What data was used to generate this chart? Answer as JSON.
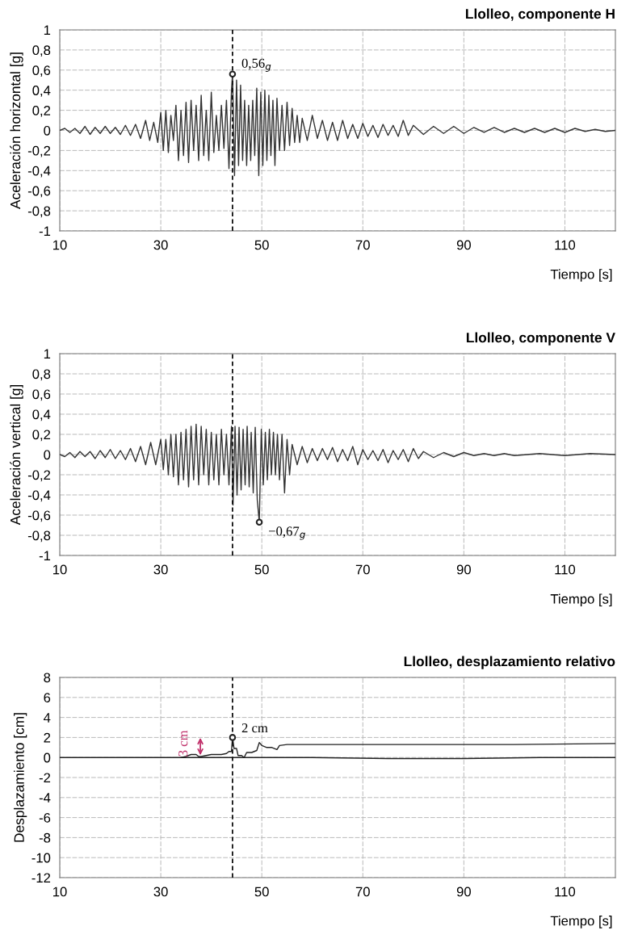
{
  "chart_data": [
    {
      "type": "line",
      "title": "Llolleo, componente H",
      "xlabel": "Tiempo [s]",
      "ylabel": "Aceleración horizontal [g]",
      "xlim": [
        10,
        120
      ],
      "xticks": [
        10,
        30,
        50,
        70,
        90,
        110
      ],
      "ylim": [
        -1,
        1
      ],
      "yticks": [
        {
          "value": -1,
          "label": "-1"
        },
        {
          "value": -0.8,
          "label": "-0,8"
        },
        {
          "value": -0.6,
          "label": "-0,6"
        },
        {
          "value": -0.4,
          "label": "-0,4"
        },
        {
          "value": -0.2,
          "label": "-0,2"
        },
        {
          "value": 0,
          "label": "0"
        },
        {
          "value": 0.2,
          "label": "0,2"
        },
        {
          "value": 0.4,
          "label": "0,4"
        },
        {
          "value": 0.6,
          "label": "0,6"
        },
        {
          "value": 0.8,
          "label": "0,8"
        },
        {
          "value": 1,
          "label": "1"
        }
      ],
      "grid": true,
      "ref_lines": [
        {
          "axis": "x",
          "value": 44.2,
          "label": null,
          "line_style": "dashed",
          "color": "#111111"
        }
      ],
      "series": [
        {
          "color": "#333333",
          "x": [
            10,
            11,
            12,
            13,
            14,
            15,
            16,
            17,
            18,
            19,
            20,
            21,
            22,
            23,
            24,
            25,
            26,
            27,
            27.8,
            28.6,
            29.4,
            30,
            30.5,
            31,
            31.5,
            32,
            32.5,
            33,
            33.5,
            34,
            34.5,
            35,
            35.5,
            36,
            36.5,
            37,
            37.5,
            38,
            38.5,
            39,
            39.5,
            40,
            40.5,
            41,
            41.5,
            42,
            42.5,
            43,
            43.5,
            44,
            44.2,
            44.6,
            45,
            45.4,
            45.8,
            46.2,
            46.6,
            47,
            47.4,
            47.8,
            48.2,
            48.6,
            49,
            49.4,
            49.8,
            50.2,
            50.6,
            51,
            51.4,
            51.8,
            52.2,
            52.6,
            53,
            53.5,
            54,
            54.5,
            55,
            55.5,
            56,
            56.5,
            57,
            57.5,
            58,
            59,
            60,
            61,
            62,
            63,
            64,
            65,
            66,
            67,
            68,
            69,
            70,
            71,
            72,
            73,
            74,
            75,
            76,
            77,
            78,
            79,
            80,
            82,
            84,
            86,
            88,
            90,
            92,
            94,
            96,
            98,
            100,
            102,
            104,
            106,
            108,
            110,
            112,
            114,
            116,
            118,
            120
          ],
          "values": [
            0,
            0.02,
            -0.02,
            0.02,
            -0.03,
            0.04,
            -0.04,
            0.03,
            -0.03,
            0.04,
            -0.03,
            0.03,
            -0.04,
            0.05,
            -0.05,
            0.06,
            -0.08,
            0.1,
            -0.1,
            0.08,
            -0.12,
            0.18,
            -0.2,
            0.2,
            -0.22,
            0.15,
            -0.1,
            0.25,
            -0.3,
            0.2,
            -0.25,
            0.28,
            -0.32,
            0.3,
            -0.2,
            0.25,
            -0.3,
            0.35,
            -0.25,
            0.2,
            -0.3,
            0.38,
            -0.22,
            0.15,
            -0.2,
            0.25,
            -0.18,
            0.3,
            -0.38,
            0.4,
            0.56,
            -0.45,
            0.5,
            -0.35,
            0.45,
            -0.3,
            0.3,
            -0.35,
            0.25,
            -0.3,
            0.3,
            -0.25,
            0.42,
            -0.45,
            0.38,
            -0.35,
            0.4,
            -0.3,
            0.35,
            -0.25,
            0.3,
            -0.35,
            0.32,
            -0.2,
            0.25,
            -0.2,
            0.28,
            -0.15,
            0.22,
            -0.12,
            0.15,
            -0.12,
            0.12,
            -0.1,
            0.15,
            -0.08,
            0.1,
            -0.1,
            0.08,
            -0.1,
            0.1,
            -0.08,
            0.06,
            -0.08,
            0.07,
            -0.06,
            0.05,
            -0.07,
            0.06,
            -0.05,
            0.05,
            -0.06,
            0.1,
            -0.05,
            0.05,
            -0.04,
            0.04,
            -0.03,
            0.04,
            -0.03,
            0.03,
            -0.02,
            0.03,
            -0.02,
            0.02,
            -0.02,
            0.02,
            -0.02,
            0.02,
            -0.02,
            0.02,
            -0.01,
            0.01,
            -0.01,
            0
          ]
        },
        {
          "type": "scatter",
          "color": "#222222",
          "marker": "circle",
          "x": [
            44.2
          ],
          "values": [
            0.56
          ],
          "value_labels": [
            "0,56$_{g}$"
          ]
        }
      ]
    },
    {
      "type": "line",
      "title": "Llolleo, componente V",
      "xlabel": "Tiempo [s]",
      "ylabel": "Aceleración vertical [g]",
      "xlim": [
        10,
        120
      ],
      "xticks": [
        10,
        30,
        50,
        70,
        90,
        110
      ],
      "ylim": [
        -1,
        1
      ],
      "yticks": [
        {
          "value": -1,
          "label": "-1"
        },
        {
          "value": -0.8,
          "label": "-0,8"
        },
        {
          "value": -0.6,
          "label": "-0,6"
        },
        {
          "value": -0.4,
          "label": "-0,4"
        },
        {
          "value": -0.2,
          "label": "-0,2"
        },
        {
          "value": 0,
          "label": "0"
        },
        {
          "value": 0.2,
          "label": "0,2"
        },
        {
          "value": 0.4,
          "label": "0,4"
        },
        {
          "value": 0.6,
          "label": "0,6"
        },
        {
          "value": 0.8,
          "label": "0,8"
        },
        {
          "value": 1,
          "label": "1"
        }
      ],
      "grid": true,
      "ref_lines": [
        {
          "axis": "x",
          "value": 44.2,
          "label": null,
          "line_style": "dashed",
          "color": "#111111"
        }
      ],
      "series": [
        {
          "color": "#333333",
          "x": [
            10,
            11,
            12,
            13,
            14,
            15,
            16,
            17,
            18,
            19,
            20,
            21,
            22,
            23,
            24,
            25,
            26,
            27,
            28,
            29,
            30,
            30.5,
            31,
            31.5,
            32,
            32.5,
            33,
            33.5,
            34,
            34.5,
            35,
            35.5,
            36,
            36.5,
            37,
            37.5,
            38,
            38.5,
            39,
            39.5,
            40,
            40.5,
            41,
            41.5,
            42,
            42.5,
            43,
            43.5,
            44,
            44.3,
            44.7,
            45.1,
            45.5,
            45.9,
            46.3,
            46.7,
            47.1,
            47.5,
            47.9,
            48.3,
            48.7,
            49.1,
            49.5,
            49.9,
            50.3,
            50.7,
            51.1,
            51.5,
            51.9,
            52.3,
            52.7,
            53.1,
            53.5,
            54,
            54.5,
            55,
            55.5,
            56,
            57,
            58,
            59,
            60,
            61,
            62,
            63,
            64,
            65,
            66,
            67,
            68,
            69,
            70,
            71,
            72,
            73,
            74,
            75,
            76,
            77,
            78,
            79,
            80,
            81,
            82,
            84,
            86,
            88,
            90,
            92,
            94,
            96,
            98,
            100,
            105,
            110,
            115,
            120
          ],
          "values": [
            0,
            -0.02,
            0.02,
            -0.03,
            0.03,
            -0.02,
            0.03,
            -0.04,
            0.04,
            -0.03,
            0.05,
            -0.04,
            0.04,
            -0.05,
            0.06,
            -0.07,
            0.08,
            -0.1,
            0.12,
            -0.1,
            0.15,
            -0.15,
            0.15,
            -0.2,
            0.2,
            -0.22,
            0.2,
            -0.3,
            0.22,
            -0.25,
            0.25,
            -0.32,
            0.28,
            -0.25,
            0.3,
            -0.3,
            0.28,
            -0.2,
            0.25,
            -0.3,
            0.22,
            -0.25,
            0.2,
            -0.3,
            0.25,
            -0.2,
            0.2,
            -0.3,
            0.28,
            -0.5,
            0.28,
            -0.4,
            0.27,
            -0.35,
            0.25,
            -0.3,
            0.28,
            -0.32,
            0.22,
            -0.38,
            0.27,
            -0.45,
            -0.67,
            0.25,
            -0.3,
            0.22,
            -0.25,
            0.25,
            -0.2,
            0.22,
            -0.2,
            0.2,
            -0.25,
            0.2,
            -0.38,
            0.15,
            -0.2,
            0.1,
            -0.1,
            0.08,
            -0.08,
            0.06,
            -0.06,
            0.06,
            -0.05,
            0.07,
            -0.07,
            0.05,
            -0.06,
            0.08,
            -0.1,
            0.05,
            -0.05,
            0.04,
            -0.06,
            0.05,
            -0.08,
            0.04,
            -0.05,
            0.05,
            -0.07,
            0.06,
            -0.04,
            0.03,
            -0.03,
            0.02,
            -0.02,
            0.02,
            -0.01,
            0.01,
            -0.01,
            0.01,
            -0.01,
            0.01,
            -0.01,
            0.01,
            0
          ]
        },
        {
          "type": "scatter",
          "color": "#222222",
          "marker": "circle",
          "x": [
            49.5
          ],
          "values": [
            -0.67
          ],
          "value_labels": [
            "−0,67$_{g}$"
          ]
        }
      ]
    },
    {
      "type": "line",
      "title": "Llolleo, desplazamiento relativo",
      "xlabel": "Tiempo [s]",
      "ylabel": "Desplazamiento [cm]",
      "xlim": [
        10,
        120
      ],
      "xticks": [
        10,
        30,
        50,
        70,
        90,
        110
      ],
      "ylim": [
        -12,
        8
      ],
      "yticks": [
        -12,
        -10,
        -8,
        -6,
        -4,
        -2,
        0,
        2,
        4,
        6,
        8
      ],
      "grid": true,
      "ref_lines": [
        {
          "axis": "x",
          "value": 44.2,
          "label": null,
          "line_style": "dashed",
          "color": "#111111"
        }
      ],
      "annotations": [
        "3 cm"
      ],
      "series": [
        {
          "color": "#222222",
          "x": [
            10,
            40,
            60,
            75,
            90,
            105,
            120
          ],
          "values": [
            0,
            0,
            0,
            -0.1,
            -0.1,
            0,
            0
          ]
        },
        {
          "color": "#222222",
          "x": [
            34,
            35,
            36,
            37,
            37.5,
            38,
            39,
            40,
            41,
            42,
            43,
            43.5,
            44,
            44.2,
            44.5,
            45,
            45.3,
            46,
            46.5,
            47,
            48,
            49,
            49.5,
            50,
            51,
            52,
            53,
            53.5,
            55,
            60,
            80,
            100,
            120
          ],
          "values": [
            0,
            0.1,
            0.3,
            0.3,
            0.1,
            0.1,
            0.2,
            0.3,
            0.3,
            0.3,
            0.4,
            0.6,
            0.6,
            2,
            0.9,
            0.9,
            0.2,
            0.2,
            0,
            0.5,
            0.5,
            0.7,
            1.5,
            1.2,
            1.0,
            1.0,
            0.8,
            1.2,
            1.3,
            1.3,
            1.3,
            1.3,
            1.4
          ]
        },
        {
          "type": "scatter",
          "color": "#222222",
          "marker": "circle",
          "x": [
            44.2
          ],
          "values": [
            2
          ],
          "value_labels": [
            "2 cm"
          ]
        }
      ]
    }
  ]
}
